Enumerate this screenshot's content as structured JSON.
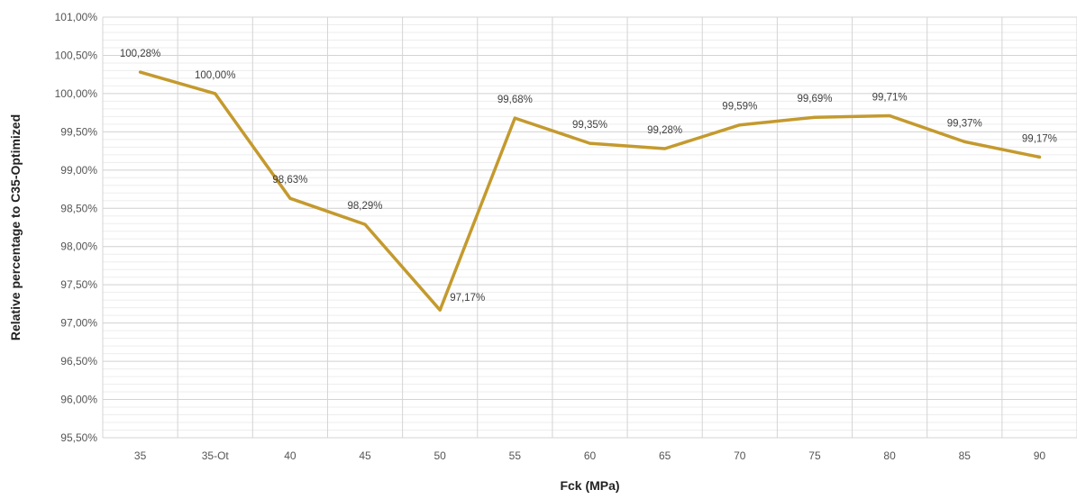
{
  "chart_data": {
    "type": "line",
    "xlabel": "Fck (MPa)",
    "ylabel": "Relative percentage to C35-Optimized",
    "categories": [
      "35",
      "35-Ot",
      "40",
      "45",
      "50",
      "55",
      "60",
      "65",
      "70",
      "75",
      "80",
      "85",
      "90"
    ],
    "series": [
      {
        "values": [
          100.28,
          100.0,
          98.63,
          98.29,
          97.17,
          99.68,
          99.35,
          99.28,
          99.59,
          99.69,
          99.71,
          99.37,
          99.17
        ],
        "labels": [
          "100,28%",
          "100,00%",
          "98,63%",
          "98,29%",
          "97,17%",
          "99,68%",
          "99,35%",
          "99,28%",
          "99,59%",
          "99,69%",
          "99,71%",
          "99,37%",
          "99,17%"
        ],
        "color": "#c49a2e"
      }
    ],
    "ylim": [
      95.5,
      101.0
    ],
    "yticks": [
      95.5,
      96.0,
      96.5,
      97.0,
      97.5,
      98.0,
      98.5,
      99.0,
      99.5,
      100.0,
      100.5,
      101.0
    ],
    "ytick_labels": [
      "95,50%",
      "96,00%",
      "96,50%",
      "97,00%",
      "97,50%",
      "98,00%",
      "98,50%",
      "99,00%",
      "99,50%",
      "100,00%",
      "100,50%",
      "101,00%"
    ],
    "grid": true,
    "legend": "none"
  }
}
